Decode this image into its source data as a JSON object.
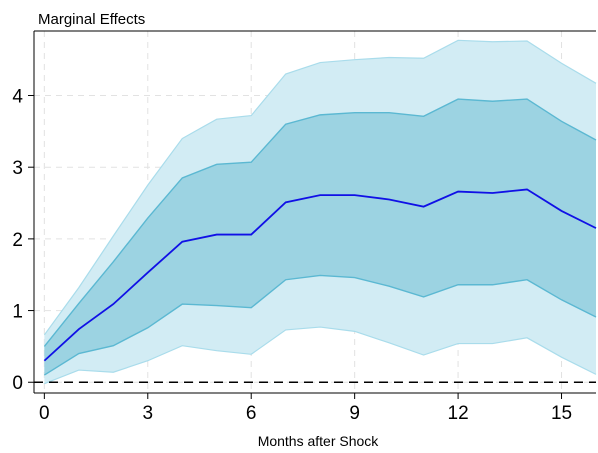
{
  "chart_data": {
    "type": "line",
    "title": "Marginal Effects",
    "xlabel": "Months after Shock",
    "ylabel": "",
    "xlim": [
      -0.3,
      16
    ],
    "ylim": [
      -0.15,
      4.9
    ],
    "x_ticks": [
      0,
      3,
      6,
      9,
      12,
      15
    ],
    "y_ticks": [
      0,
      1,
      2,
      3,
      4
    ],
    "grid": true,
    "zero_line": 0,
    "x": [
      0,
      1,
      2,
      3,
      4,
      5,
      6,
      7,
      8,
      9,
      10,
      11,
      12,
      13,
      14,
      15,
      16
    ],
    "series": [
      {
        "role": "outer-band-upper",
        "values": [
          0.66,
          1.32,
          2.04,
          2.75,
          3.4,
          3.67,
          3.72,
          4.3,
          4.46,
          4.5,
          4.53,
          4.52,
          4.77,
          4.75,
          4.76,
          4.45,
          4.17
        ]
      },
      {
        "role": "outer-band-lower",
        "values": [
          -0.02,
          0.17,
          0.14,
          0.3,
          0.51,
          0.44,
          0.39,
          0.73,
          0.77,
          0.71,
          0.55,
          0.38,
          0.54,
          0.54,
          0.62,
          0.35,
          0.11
        ]
      },
      {
        "role": "inner-band-upper",
        "values": [
          0.5,
          1.1,
          1.68,
          2.29,
          2.85,
          3.04,
          3.07,
          3.6,
          3.73,
          3.76,
          3.76,
          3.71,
          3.95,
          3.92,
          3.95,
          3.64,
          3.38
        ]
      },
      {
        "role": "inner-band-lower",
        "values": [
          0.1,
          0.4,
          0.51,
          0.76,
          1.09,
          1.07,
          1.04,
          1.43,
          1.49,
          1.46,
          1.34,
          1.19,
          1.36,
          1.36,
          1.43,
          1.15,
          0.91
        ]
      },
      {
        "role": "point-estimate",
        "values": [
          0.3,
          0.74,
          1.09,
          1.53,
          1.96,
          2.06,
          2.06,
          2.51,
          2.61,
          2.61,
          2.55,
          2.45,
          2.66,
          2.64,
          2.69,
          2.39,
          2.15
        ]
      }
    ],
    "colors": {
      "outer_band": "#d2ecf4",
      "outer_band_edge": "#a9dceb",
      "inner_band": "#9cd3e2",
      "inner_band_edge": "#5bb8d2",
      "line": "#1010e6",
      "zero_line": "#000000",
      "grid": "#e2e2e2"
    }
  }
}
